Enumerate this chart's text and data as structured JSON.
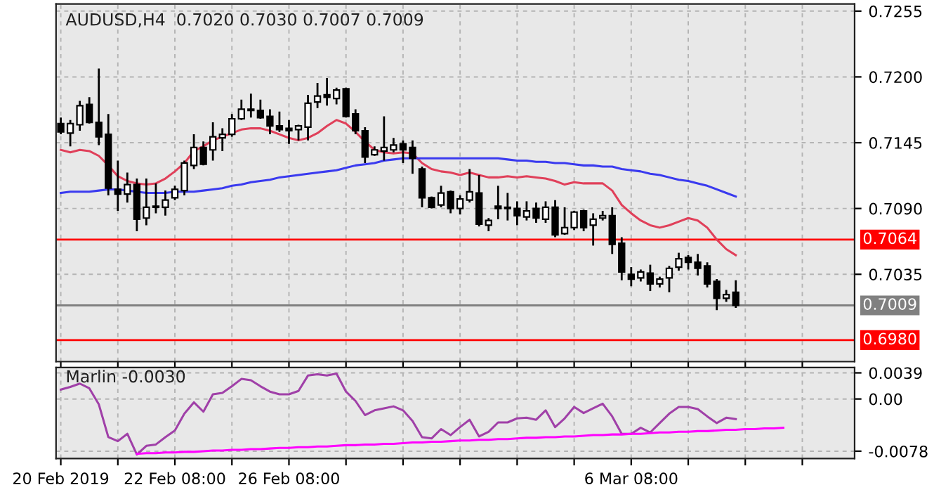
{
  "chart_data": [
    {
      "type": "candlestick",
      "title": "AUDUSD,H4  0.7020 0.7030 0.7007 0.7009",
      "categories": [
        null,
        null,
        null,
        null,
        null,
        null,
        null,
        null,
        null,
        null,
        null,
        null,
        null,
        null,
        null,
        null,
        null,
        null,
        null,
        null,
        null,
        null,
        null,
        null,
        null,
        null,
        null,
        null,
        null,
        null,
        null,
        null,
        null,
        null,
        null,
        null,
        null,
        null,
        null,
        null,
        null,
        null,
        null,
        null,
        null,
        null,
        null,
        null,
        null,
        null,
        null,
        null,
        null,
        null,
        null,
        null,
        null,
        null,
        null,
        null,
        null,
        null,
        null,
        null,
        null,
        null,
        null,
        null,
        null,
        null,
        null,
        null,
        null,
        null,
        null,
        null,
        null,
        null,
        null,
        null,
        null,
        null,
        null,
        null
      ],
      "ohlc": [
        [
          0.7161,
          0.7166,
          0.7152,
          0.7154
        ],
        [
          0.7153,
          0.7164,
          0.7142,
          0.7161
        ],
        [
          0.716,
          0.718,
          0.7155,
          0.7176
        ],
        [
          0.7177,
          0.7183,
          0.7161,
          0.7162
        ],
        [
          0.7162,
          0.7207,
          0.7143,
          0.715
        ],
        [
          0.7152,
          0.7169,
          0.7101,
          0.7107
        ],
        [
          0.7106,
          0.713,
          0.7088,
          0.7102
        ],
        [
          0.7102,
          0.712,
          0.7095,
          0.711
        ],
        [
          0.711,
          0.7115,
          0.7071,
          0.7081
        ],
        [
          0.7082,
          0.7115,
          0.7076,
          0.7091
        ],
        [
          0.7092,
          0.7111,
          0.7086,
          0.7091
        ],
        [
          0.7091,
          0.7105,
          0.7084,
          0.7097
        ],
        [
          0.7099,
          0.7109,
          0.7097,
          0.7106
        ],
        [
          0.7105,
          0.713,
          0.7101,
          0.7128
        ],
        [
          0.7126,
          0.7152,
          0.7123,
          0.7141
        ],
        [
          0.7141,
          0.7146,
          0.7126,
          0.7127
        ],
        [
          0.7139,
          0.7162,
          0.713,
          0.715
        ],
        [
          0.7149,
          0.7157,
          0.7138,
          0.7152
        ],
        [
          0.7152,
          0.7169,
          0.715,
          0.7165
        ],
        [
          0.7165,
          0.7181,
          0.7164,
          0.7173
        ],
        [
          0.7173,
          0.7186,
          0.7166,
          0.7172
        ],
        [
          0.7172,
          0.7181,
          0.7165,
          0.7166
        ],
        [
          0.7167,
          0.7173,
          0.7152,
          0.7159
        ],
        [
          0.7159,
          0.7171,
          0.7154,
          0.7156
        ],
        [
          0.7157,
          0.7164,
          0.7144,
          0.7155
        ],
        [
          0.7156,
          0.716,
          0.7147,
          0.7159
        ],
        [
          0.7158,
          0.7185,
          0.7147,
          0.7178
        ],
        [
          0.7179,
          0.7195,
          0.7174,
          0.7184
        ],
        [
          0.7185,
          0.7199,
          0.7176,
          0.7183
        ],
        [
          0.7182,
          0.7191,
          0.7177,
          0.7189
        ],
        [
          0.719,
          0.7191,
          0.7166,
          0.7167
        ],
        [
          0.7169,
          0.7173,
          0.7152,
          0.7155
        ],
        [
          0.7155,
          0.7158,
          0.7128,
          0.7133
        ],
        [
          0.7135,
          0.7142,
          0.7134,
          0.7139
        ],
        [
          0.7138,
          0.7167,
          0.713,
          0.7141
        ],
        [
          0.7139,
          0.7149,
          0.7137,
          0.7143
        ],
        [
          0.7144,
          0.7147,
          0.7128,
          0.7139
        ],
        [
          0.7141,
          0.7147,
          0.7119,
          0.7132
        ],
        [
          0.7123,
          0.7125,
          0.7091,
          0.7099
        ],
        [
          0.7099,
          0.71,
          0.709,
          0.7091
        ],
        [
          0.7093,
          0.7109,
          0.7091,
          0.7103
        ],
        [
          0.7104,
          0.7105,
          0.7086,
          0.709
        ],
        [
          0.709,
          0.7101,
          0.7085,
          0.7098
        ],
        [
          0.7097,
          0.7123,
          0.7095,
          0.7104
        ],
        [
          0.7103,
          0.7118,
          0.7075,
          0.7077
        ],
        [
          0.7076,
          0.7082,
          0.7071,
          0.708
        ],
        [
          0.7092,
          0.7109,
          0.7081,
          0.709
        ],
        [
          0.7091,
          0.7103,
          0.708,
          0.709
        ],
        [
          0.709,
          0.7096,
          0.7076,
          0.7084
        ],
        [
          0.7083,
          0.7096,
          0.708,
          0.7088
        ],
        [
          0.709,
          0.7095,
          0.7078,
          0.7082
        ],
        [
          0.7081,
          0.7096,
          0.7078,
          0.7091
        ],
        [
          0.7091,
          0.7097,
          0.7066,
          0.7068
        ],
        [
          0.7069,
          0.7091,
          0.7068,
          0.7074
        ],
        [
          0.7074,
          0.7088,
          0.7072,
          0.7087
        ],
        [
          0.7088,
          0.7089,
          0.7071,
          0.7074
        ],
        [
          0.7076,
          0.7086,
          0.7059,
          0.7081
        ],
        [
          0.7082,
          0.7088,
          0.708,
          0.7084
        ],
        [
          0.7084,
          0.7091,
          0.7052,
          0.706
        ],
        [
          0.7061,
          0.7066,
          0.703,
          0.7037
        ],
        [
          0.7035,
          0.7041,
          0.7025,
          0.7031
        ],
        [
          0.7032,
          0.7039,
          0.7029,
          0.7037
        ],
        [
          0.7036,
          0.7043,
          0.7021,
          0.7027
        ],
        [
          0.7027,
          0.7033,
          0.7024,
          0.7031
        ],
        [
          0.7032,
          0.7042,
          0.702,
          0.704
        ],
        [
          0.7041,
          0.7053,
          0.7038,
          0.7048
        ],
        [
          0.7049,
          0.7051,
          0.7039,
          0.7045
        ],
        [
          0.7045,
          0.7052,
          0.7034,
          0.704
        ],
        [
          0.7042,
          0.7045,
          0.7024,
          0.7027
        ],
        [
          0.7029,
          0.7031,
          0.7005,
          0.7015
        ],
        [
          0.7015,
          0.7022,
          0.7012,
          0.7018
        ],
        [
          0.702,
          0.703,
          0.7007,
          0.7009
        ],
        null,
        null,
        null,
        null,
        null,
        null,
        null,
        null,
        null,
        null,
        null,
        null
      ],
      "series": [
        {
          "type": "line",
          "color": "#e0405a",
          "values": [
            0.7139,
            0.7137,
            0.7139,
            0.7138,
            0.7134,
            0.7126,
            0.7117,
            0.7113,
            0.7111,
            0.711,
            0.7111,
            0.7115,
            0.7121,
            0.7128,
            0.7138,
            0.7142,
            0.7147,
            0.715,
            0.7153,
            0.7156,
            0.7157,
            0.7157,
            0.7155,
            0.7152,
            0.7149,
            0.7147,
            0.7149,
            0.7153,
            0.7159,
            0.7164,
            0.7161,
            0.7154,
            0.7146,
            0.7139,
            0.7137,
            0.7136,
            0.7137,
            0.7136,
            0.7128,
            0.7123,
            0.7121,
            0.712,
            0.7118,
            0.712,
            0.7118,
            0.7116,
            0.7116,
            0.7117,
            0.7116,
            0.7117,
            0.7116,
            0.7115,
            0.7113,
            0.711,
            0.7112,
            0.7111,
            0.7111,
            0.7111,
            0.7105,
            0.7093,
            0.7086,
            0.708,
            0.7076,
            0.7074,
            0.7076,
            0.7079,
            0.7082,
            0.708,
            0.7074,
            0.7064,
            0.7056,
            0.7051,
            null,
            null,
            null,
            null,
            null,
            null,
            null,
            null,
            null,
            null,
            null,
            null
          ]
        },
        {
          "type": "line",
          "color": "#3a3aef",
          "values": [
            0.7103,
            0.7104,
            0.7104,
            0.7104,
            0.7105,
            0.7106,
            0.7106,
            0.7105,
            0.7104,
            0.7103,
            0.7103,
            0.7103,
            0.7104,
            0.7104,
            0.7104,
            0.7105,
            0.7106,
            0.7107,
            0.7109,
            0.711,
            0.7112,
            0.7113,
            0.7114,
            0.7116,
            0.7117,
            0.7118,
            0.7119,
            0.712,
            0.7121,
            0.7122,
            0.7124,
            0.7126,
            0.7127,
            0.7128,
            0.713,
            0.7131,
            0.7132,
            0.7132,
            0.7132,
            0.7132,
            0.7132,
            0.7132,
            0.7132,
            0.7132,
            0.7132,
            0.7132,
            0.7132,
            0.7131,
            0.713,
            0.713,
            0.7129,
            0.7129,
            0.7128,
            0.7128,
            0.7127,
            0.7126,
            0.7126,
            0.7125,
            0.7125,
            0.7123,
            0.7122,
            0.7121,
            0.7119,
            0.7118,
            0.7116,
            0.7114,
            0.7113,
            0.7111,
            0.7109,
            0.7106,
            0.7103,
            0.71,
            null,
            null,
            null,
            null,
            null,
            null,
            null,
            null,
            null,
            null,
            null,
            null
          ]
        }
      ],
      "ylim": [
        0.6962,
        0.7261
      ],
      "yticks": [
        0.7255,
        {
          "value": 0.72,
          "label": "0.7200"
        },
        0.7145,
        {
          "value": 0.709,
          "label": "0.7090"
        },
        0.7035
      ],
      "ref_lines": [
        {
          "axis": "y",
          "value": 0.7064,
          "label": "0.7064",
          "color": "#ff0000"
        },
        {
          "axis": "y",
          "value": 0.7009,
          "label": "0.7009",
          "color": "#808080"
        },
        {
          "axis": "y",
          "value": 0.698,
          "label": "0.6980",
          "color": "#ff0000"
        }
      ],
      "grid": true,
      "tick_labels": "y"
    },
    {
      "type": "line",
      "title": "Marlin -0.0030",
      "categories": [
        "20 Feb 2019",
        null,
        null,
        null,
        null,
        null,
        null,
        null,
        null,
        null,
        null,
        null,
        "22 Feb 08:00",
        null,
        null,
        null,
        null,
        null,
        null,
        null,
        null,
        null,
        null,
        null,
        "26 Feb 08:00",
        null,
        null,
        null,
        null,
        null,
        null,
        null,
        null,
        null,
        null,
        null,
        null,
        null,
        null,
        null,
        null,
        null,
        null,
        null,
        null,
        null,
        null,
        null,
        null,
        null,
        null,
        null,
        null,
        null,
        null,
        null,
        null,
        null,
        null,
        null,
        "6 Mar 08:00",
        null,
        null,
        null,
        null,
        null,
        null,
        null,
        null,
        null,
        null,
        null,
        null,
        null,
        null,
        null,
        null,
        null,
        null,
        null,
        null,
        null,
        null,
        null
      ],
      "series": [
        {
          "color": "#a040a8",
          "values": [
            0.0014,
            0.0018,
            0.0023,
            0.0016,
            -0.0008,
            -0.0057,
            -0.0063,
            -0.0052,
            -0.0083,
            -0.007,
            -0.0068,
            -0.0057,
            -0.0047,
            -0.0022,
            -0.0005,
            -0.0019,
            0.0007,
            0.0009,
            0.0019,
            0.003,
            0.0028,
            0.0019,
            0.0011,
            0.0007,
            0.0007,
            0.0012,
            0.0035,
            0.0037,
            0.0035,
            0.0038,
            0.0011,
            -0.0003,
            -0.0024,
            -0.0017,
            -0.0014,
            -0.0011,
            -0.0017,
            -0.0033,
            -0.0057,
            -0.0059,
            -0.0045,
            -0.0054,
            -0.0042,
            -0.0031,
            -0.0056,
            -0.0049,
            -0.0035,
            -0.0035,
            -0.0029,
            -0.0028,
            -0.0031,
            -0.0017,
            -0.0042,
            -0.0029,
            -0.0012,
            -0.0021,
            -0.0014,
            -0.0007,
            -0.0026,
            -0.0052,
            -0.0052,
            -0.0043,
            -0.005,
            -0.0036,
            -0.0022,
            -0.0012,
            -0.0012,
            -0.0015,
            -0.0026,
            -0.0036,
            -0.0028,
            -0.003,
            null,
            null,
            null,
            null,
            null,
            null,
            null,
            null,
            null,
            null,
            null,
            null
          ]
        },
        {
          "color": "#ff00ff",
          "values": [
            null,
            null,
            null,
            null,
            null,
            null,
            null,
            null,
            -0.0082,
            -0.0081,
            -0.0081,
            -0.008,
            -0.008,
            -0.0079,
            -0.0079,
            -0.0078,
            -0.0077,
            -0.0077,
            -0.0076,
            -0.0076,
            -0.0075,
            -0.0075,
            -0.0074,
            -0.0073,
            -0.0073,
            -0.0072,
            -0.0072,
            -0.0071,
            -0.0071,
            -0.007,
            -0.0069,
            -0.0069,
            -0.0068,
            -0.0068,
            -0.0067,
            -0.0067,
            -0.0066,
            -0.0065,
            -0.0065,
            -0.0064,
            -0.0064,
            -0.0063,
            -0.0062,
            -0.0062,
            -0.0061,
            -0.0061,
            -0.006,
            -0.006,
            -0.0059,
            -0.0058,
            -0.0058,
            -0.0057,
            -0.0057,
            -0.0056,
            -0.0056,
            -0.0055,
            -0.0054,
            -0.0054,
            -0.0053,
            -0.0053,
            -0.0052,
            -0.0052,
            -0.0051,
            -0.005,
            -0.005,
            -0.0049,
            -0.0049,
            -0.0048,
            -0.0048,
            -0.0047,
            -0.0046,
            -0.0046,
            -0.0045,
            -0.0045,
            -0.0044,
            -0.0044,
            -0.0043,
            null,
            null,
            null,
            null,
            null,
            null,
            null
          ]
        }
      ],
      "ylim": [
        -0.0089,
        0.0047
      ],
      "yticks": [
        0.0039,
        {
          "value": 0,
          "label": "0.00"
        },
        {
          "value": -0.0078,
          "label": "-0.0078"
        }
      ],
      "grid": true
    }
  ]
}
